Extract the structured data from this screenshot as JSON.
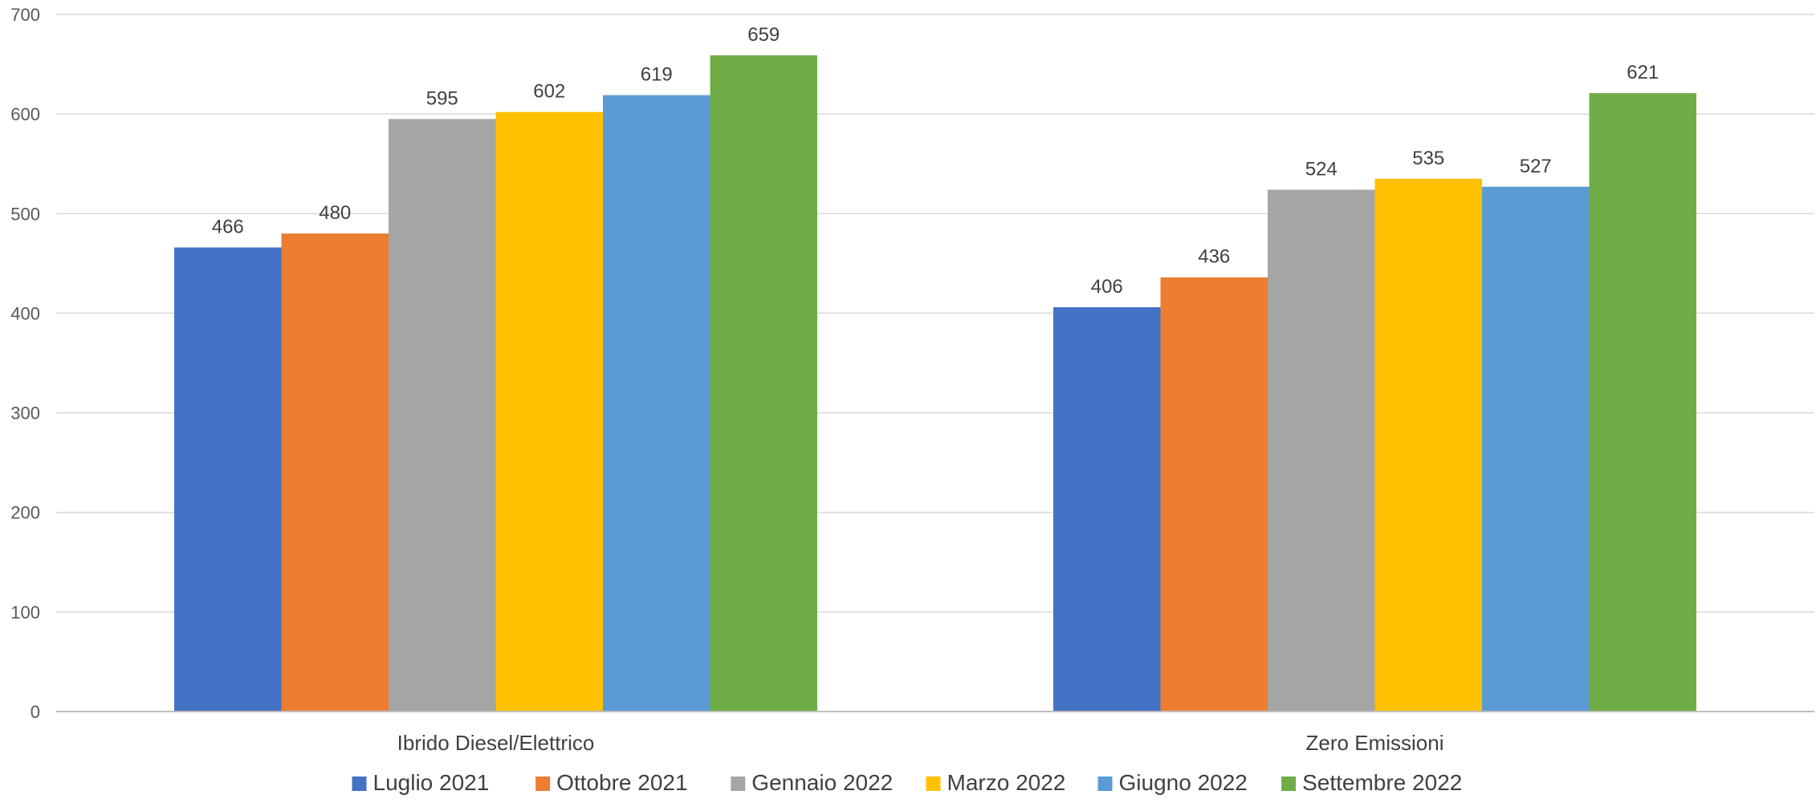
{
  "chart_data": {
    "type": "bar",
    "categories": [
      "Ibrido Diesel/Elettrico",
      "Zero Emissioni"
    ],
    "series": [
      {
        "name": "Luglio 2021",
        "values": [
          466,
          406
        ],
        "color": "#4472C4"
      },
      {
        "name": "Ottobre 2021",
        "values": [
          480,
          436
        ],
        "color": "#ED7D31"
      },
      {
        "name": "Gennaio 2022",
        "values": [
          595,
          524
        ],
        "color": "#A5A5A5"
      },
      {
        "name": "Marzo 2022",
        "values": [
          602,
          535
        ],
        "color": "#FFC000"
      },
      {
        "name": "Giugno 2022",
        "values": [
          619,
          527
        ],
        "color": "#5B9BD5"
      },
      {
        "name": "Settembre 2022",
        "values": [
          659,
          621
        ],
        "color": "#70AD47"
      }
    ],
    "y_ticks": [
      "0",
      "100",
      "200",
      "300",
      "400",
      "500",
      "600",
      "700"
    ],
    "ylim": [
      0,
      700
    ],
    "grid": true,
    "legend_position": "bottom",
    "data_labels": true
  }
}
